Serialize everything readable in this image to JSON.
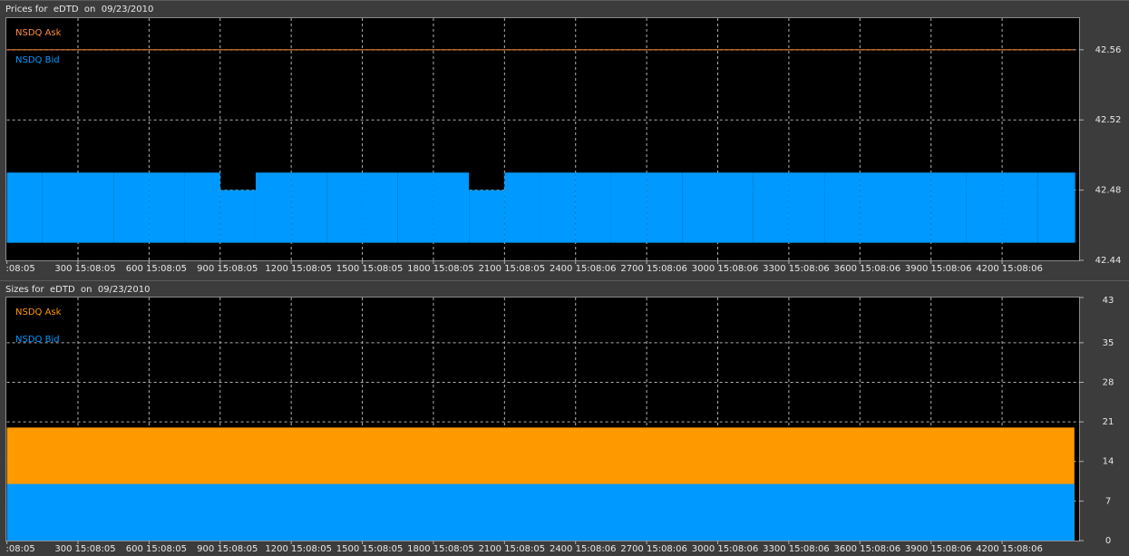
{
  "chart_data": [
    {
      "type": "price",
      "title": "Prices for  eDTD  on  09/23/2010",
      "xlim": [
        0,
        4525
      ],
      "xticks": [
        {
          "value": 0,
          "label": ":08:05"
        },
        {
          "value": 300,
          "label": "300 15:08:05"
        },
        {
          "value": 600,
          "label": "600 15:08:05"
        },
        {
          "value": 900,
          "label": "900 15:08:05"
        },
        {
          "value": 1200,
          "label": "1200 15:08:05"
        },
        {
          "value": 1500,
          "label": "1500 15:08:05"
        },
        {
          "value": 1800,
          "label": "1800 15:08:05"
        },
        {
          "value": 2100,
          "label": "2100 15:08:05"
        },
        {
          "value": 2400,
          "label": "2400 15:08:06"
        },
        {
          "value": 2700,
          "label": "2700 15:08:06"
        },
        {
          "value": 3000,
          "label": "3000 15:08:06"
        },
        {
          "value": 3300,
          "label": "3300 15:08:06"
        },
        {
          "value": 3600,
          "label": "3600 15:08:06"
        },
        {
          "value": 3900,
          "label": "3900 15:08:06"
        },
        {
          "value": 4200,
          "label": "4200 15:08:06"
        }
      ],
      "ylim": [
        42.44,
        42.578
      ],
      "yticks": [
        42.44,
        42.48,
        42.52,
        42.56
      ],
      "grid": true,
      "series": [
        {
          "name": "NSDQ Ask",
          "color": "#ff8c40",
          "x": [
            0,
            4505
          ],
          "values": [
            42.56,
            42.56
          ]
        },
        {
          "name": "NSDQ Bid",
          "color": "#0099ff",
          "x": [
            0,
            150,
            300,
            450,
            600,
            750,
            900,
            1050,
            1200,
            1350,
            1500,
            1650,
            1800,
            1950,
            2100,
            2250,
            2400,
            2550,
            2700,
            2850,
            3000,
            3150,
            3300,
            3450,
            3600,
            3750,
            3900,
            4050,
            4200,
            4350,
            4505
          ],
          "values": [
            42.49,
            42.49,
            42.49,
            42.49,
            42.49,
            42.49,
            42.48,
            42.49,
            42.49,
            42.49,
            42.49,
            42.49,
            42.49,
            42.48,
            42.49,
            42.49,
            42.49,
            42.49,
            42.49,
            42.49,
            42.49,
            42.49,
            42.49,
            42.49,
            42.49,
            42.49,
            42.49,
            42.49,
            42.49,
            42.49,
            42.49
          ],
          "low": [
            42.45,
            42.45,
            42.45,
            42.45,
            42.45,
            42.45,
            42.45,
            42.45,
            42.45,
            42.45,
            42.45,
            42.45,
            42.45,
            42.45,
            42.45,
            42.45,
            42.45,
            42.45,
            42.45,
            42.45,
            42.45,
            42.45,
            42.45,
            42.45,
            42.45,
            42.45,
            42.45,
            42.45,
            42.45,
            42.45,
            42.45
          ]
        }
      ]
    },
    {
      "type": "area",
      "title": "Sizes for  eDTD  on  09/23/2010",
      "xlim": [
        0,
        4525
      ],
      "xticks": [
        {
          "value": 0,
          "label": ":08:05"
        },
        {
          "value": 300,
          "label": "300 15:08:05"
        },
        {
          "value": 600,
          "label": "600 15:08:05"
        },
        {
          "value": 900,
          "label": "900 15:08:05"
        },
        {
          "value": 1200,
          "label": "1200 15:08:05"
        },
        {
          "value": 1500,
          "label": "1500 15:08:05"
        },
        {
          "value": 1800,
          "label": "1800 15:08:05"
        },
        {
          "value": 2100,
          "label": "2100 15:08:05"
        },
        {
          "value": 2400,
          "label": "2400 15:08:06"
        },
        {
          "value": 2700,
          "label": "2700 15:08:06"
        },
        {
          "value": 3000,
          "label": "3000 15:08:06"
        },
        {
          "value": 3300,
          "label": "3300 15:08:06"
        },
        {
          "value": 3600,
          "label": "3600 15:08:06"
        },
        {
          "value": 3900,
          "label": "3900 15:08:06"
        },
        {
          "value": 4200,
          "label": "4200 15:08:06"
        }
      ],
      "ylim": [
        0,
        43
      ],
      "yticks": [
        0,
        7,
        14,
        21,
        28,
        35,
        43
      ],
      "grid": true,
      "series": [
        {
          "name": "NSDQ Ask",
          "color": "#ff9900",
          "x": [
            0,
            4505
          ],
          "values": [
            20,
            20
          ]
        },
        {
          "name": "NSDQ Bid",
          "color": "#0099ff",
          "x": [
            0,
            4505
          ],
          "values": [
            10,
            10
          ]
        }
      ]
    }
  ]
}
